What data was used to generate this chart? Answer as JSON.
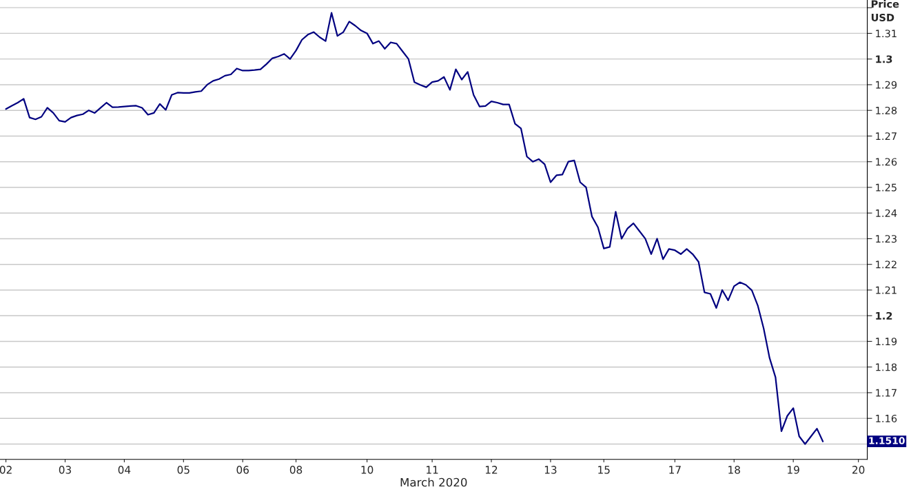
{
  "chart_data": {
    "type": "line",
    "xlabel": "March 2020",
    "ylabel": "Price\nUSD",
    "ylim": [
      1.144,
      1.323
    ],
    "categories": [
      "02",
      null,
      null,
      null,
      null,
      null,
      null,
      null,
      null,
      null,
      "03",
      null,
      null,
      null,
      null,
      null,
      null,
      null,
      null,
      null,
      "04",
      null,
      null,
      null,
      null,
      null,
      null,
      null,
      null,
      null,
      "05",
      null,
      null,
      null,
      null,
      null,
      null,
      null,
      null,
      null,
      "06",
      null,
      null,
      null,
      null,
      null,
      null,
      null,
      null,
      "08",
      null,
      null,
      null,
      null,
      null,
      null,
      null,
      null,
      null,
      null,
      null,
      "10",
      null,
      null,
      null,
      null,
      null,
      null,
      null,
      null,
      null,
      null,
      "11",
      null,
      null,
      null,
      null,
      null,
      null,
      null,
      null,
      null,
      "12",
      null,
      null,
      null,
      null,
      null,
      null,
      null,
      null,
      null,
      "13",
      null,
      null,
      null,
      null,
      null,
      null,
      null,
      null,
      "15",
      null,
      null,
      null,
      null,
      null,
      null,
      null,
      null,
      null,
      null,
      null,
      "17",
      null,
      null,
      null,
      null,
      null,
      null,
      null,
      null,
      null,
      "18",
      null,
      null,
      null,
      null,
      null,
      null,
      null,
      null,
      null,
      "19",
      null,
      null,
      null,
      null,
      null,
      null,
      null,
      null,
      null,
      null,
      "20"
    ],
    "yticks": [
      {
        "value": 1.15,
        "label": null
      },
      1.16,
      1.17,
      1.18,
      1.19,
      {
        "value": 1.2,
        "label": "1.2"
      },
      1.21,
      1.22,
      1.23,
      1.24,
      1.25,
      1.26,
      1.27,
      1.28,
      1.29,
      {
        "value": 1.3,
        "label": "1.3"
      },
      1.31,
      {
        "value": 1.32,
        "label": null
      }
    ],
    "grid": "y",
    "legend": false,
    "line_style": "solid",
    "marker": "none",
    "annotations": [
      "1.1510"
    ],
    "series": [
      {
        "color": "#000080",
        "values": [
          1.2805,
          1.2818,
          1.283,
          1.2845,
          1.2772,
          1.2765,
          1.2775,
          1.281,
          1.279,
          1.276,
          1.2755,
          1.2772,
          1.278,
          1.2785,
          1.28,
          1.279,
          1.281,
          1.283,
          1.2812,
          1.2813,
          1.2815,
          1.2817,
          1.2818,
          1.281,
          1.2783,
          1.279,
          1.2825,
          1.2802,
          1.286,
          1.2869,
          1.2868,
          1.2868,
          1.2872,
          1.2875,
          1.29,
          1.2915,
          1.2922,
          1.2935,
          1.294,
          1.2963,
          1.2955,
          1.2955,
          1.2957,
          1.296,
          1.298,
          1.3003,
          1.301,
          1.302,
          1.3,
          1.3033,
          1.3075,
          1.3095,
          1.3105,
          1.3085,
          1.307,
          1.318,
          1.309,
          1.3105,
          1.3146,
          1.313,
          1.3111,
          1.31,
          1.306,
          1.307,
          1.304,
          1.3065,
          1.306,
          1.303,
          1.3,
          1.291,
          1.2899,
          1.289,
          1.291,
          1.2915,
          1.293,
          1.288,
          1.296,
          1.292,
          1.295,
          1.286,
          1.2815,
          1.2817,
          1.2835,
          1.283,
          1.2823,
          1.2823,
          1.2748,
          1.273,
          1.262,
          1.26,
          1.261,
          1.259,
          1.252,
          1.2547,
          1.255,
          1.26,
          1.2605,
          1.252,
          1.25,
          1.2386,
          1.2345,
          1.2262,
          1.2268,
          1.2405,
          1.23,
          1.234,
          1.236,
          1.233,
          1.23,
          1.224,
          1.23,
          1.222,
          1.226,
          1.2255,
          1.224,
          1.226,
          1.224,
          1.221,
          1.2091,
          1.2085,
          1.203,
          1.21,
          1.206,
          1.2115,
          1.213,
          1.212,
          1.2099,
          1.204,
          1.195,
          1.1835,
          1.176,
          1.155,
          1.161,
          1.164,
          1.153,
          1.15,
          1.153,
          1.156,
          1.151,
          null,
          null,
          null,
          null,
          null,
          null
        ]
      }
    ]
  }
}
